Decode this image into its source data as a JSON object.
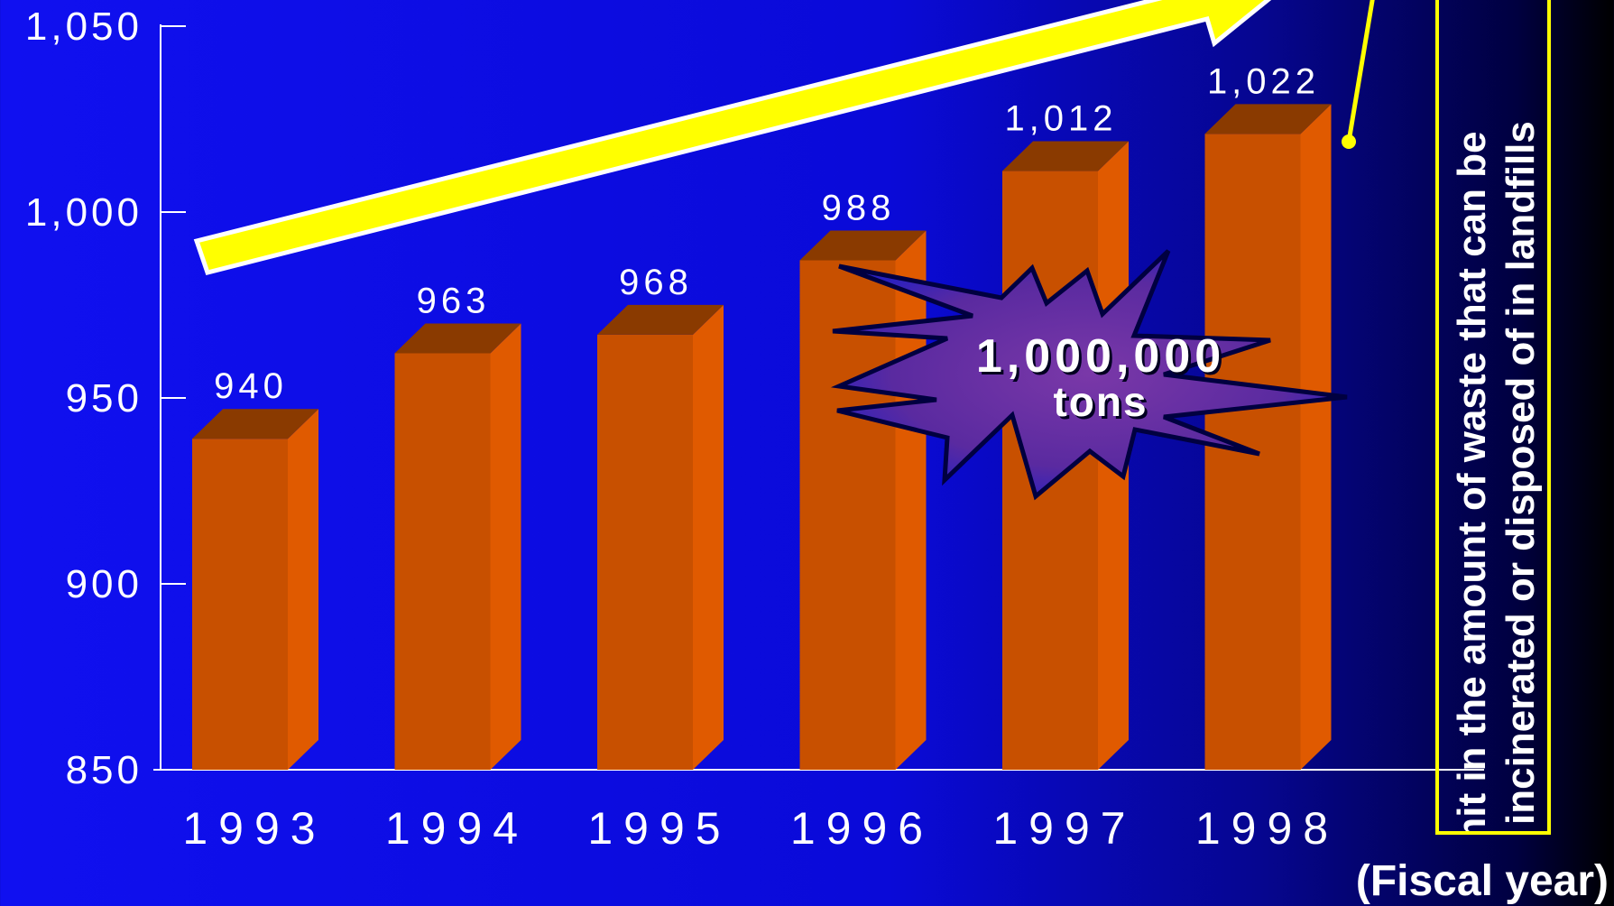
{
  "chart_data": {
    "type": "bar",
    "categories": [
      "1993",
      "1994",
      "1995",
      "1996",
      "1997",
      "1998"
    ],
    "values": [
      940,
      963,
      968,
      988,
      1012,
      1022
    ],
    "value_labels": [
      "940",
      "963",
      "968",
      "988",
      "1,012",
      "1,022"
    ],
    "y_ticks": [
      "850",
      "900",
      "950",
      "1,000",
      "1,050"
    ],
    "ylim": [
      850,
      1050
    ],
    "xlabel": "(Fiscal year)",
    "ylabel": "",
    "grid": false,
    "bar_color": "#c85000",
    "bar_top_color": "#8a3a00",
    "bar_side_color": "#e05a00"
  },
  "callout": {
    "value": "1,000,000",
    "unit": "tons"
  },
  "limit_note": {
    "line1": "Limit in the amount of waste that can be",
    "line2": "incinerated or disposed of in landfills"
  },
  "colors": {
    "arrow": "#ffff00",
    "burst_fill": "#6a2ca0",
    "limit_border": "#ffff00"
  }
}
